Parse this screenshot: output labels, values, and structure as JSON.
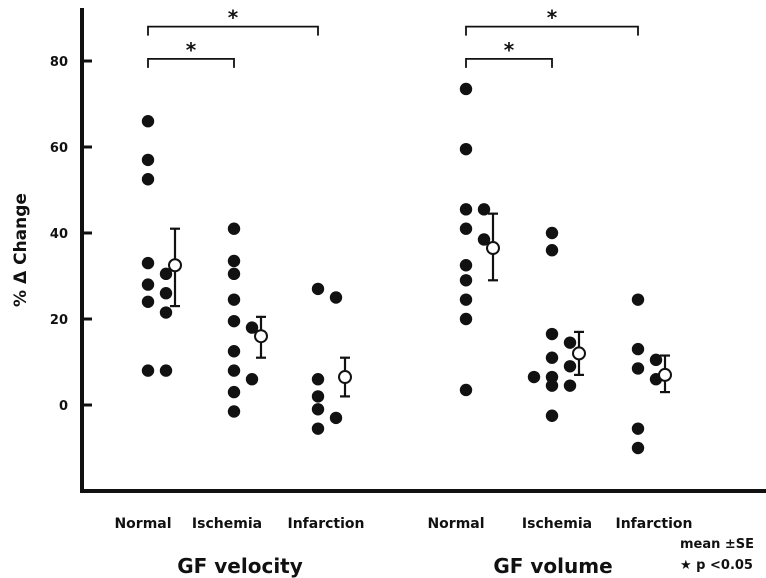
{
  "chart_data": {
    "type": "scatter",
    "title": "",
    "ylabel": "% Δ Change",
    "ylim": [
      -20,
      95
    ],
    "yticks": [
      0,
      20,
      40,
      60,
      80
    ],
    "grid": false,
    "groups": [
      {
        "label": "GF velocity",
        "categories": [
          {
            "label": "Normal",
            "values": [
              66,
              57,
              52.5,
              33,
              30.5,
              28,
              26,
              24,
              21.5,
              8,
              8
            ],
            "mean": 32.5,
            "se_low": 23,
            "se_high": 41
          },
          {
            "label": "Ischemia",
            "values": [
              41,
              33.5,
              30.5,
              24.5,
              19.5,
              18,
              12.5,
              8,
              6,
              3,
              -1.5
            ],
            "mean": 16,
            "se_low": 11,
            "se_high": 20.5
          },
          {
            "label": "Infarction",
            "values": [
              27,
              25,
              6,
              2,
              -1,
              -3,
              -5.5
            ],
            "mean": 6.5,
            "se_low": 2,
            "se_high": 11
          }
        ]
      },
      {
        "label": "GF volume",
        "categories": [
          {
            "label": "Normal",
            "values": [
              73.5,
              59.5,
              45.5,
              45.5,
              41,
              38.5,
              32.5,
              29,
              24.5,
              20,
              3.5
            ],
            "mean": 36.5,
            "se_low": 29,
            "se_high": 44.5
          },
          {
            "label": "Ischemia",
            "values": [
              40,
              36,
              16.5,
              14.5,
              11,
              9,
              6.5,
              6.5,
              4.5,
              4.5,
              -2.5
            ],
            "mean": 12,
            "se_low": 7,
            "se_high": 17
          },
          {
            "label": "Infarction",
            "values": [
              24.5,
              13,
              10.5,
              8.5,
              6,
              -5.5,
              -10
            ],
            "mean": 7,
            "se_low": 3,
            "se_high": 11.5
          }
        ]
      }
    ],
    "significance": [
      {
        "group": 0,
        "from": 0,
        "to": 1,
        "y": 80.5,
        "label": "*"
      },
      {
        "group": 0,
        "from": 0,
        "to": 2,
        "y": 88,
        "label": "*"
      },
      {
        "group": 1,
        "from": 0,
        "to": 1,
        "y": 80.5,
        "label": "*"
      },
      {
        "group": 1,
        "from": 0,
        "to": 2,
        "y": 88,
        "label": "*"
      }
    ],
    "legend": {
      "line1": "mean ±SE",
      "line2": "★  p <0.05"
    },
    "colors": {
      "filled_point": "#111111",
      "mean_marker_fill": "#ffffff",
      "stroke": "#111111"
    }
  }
}
